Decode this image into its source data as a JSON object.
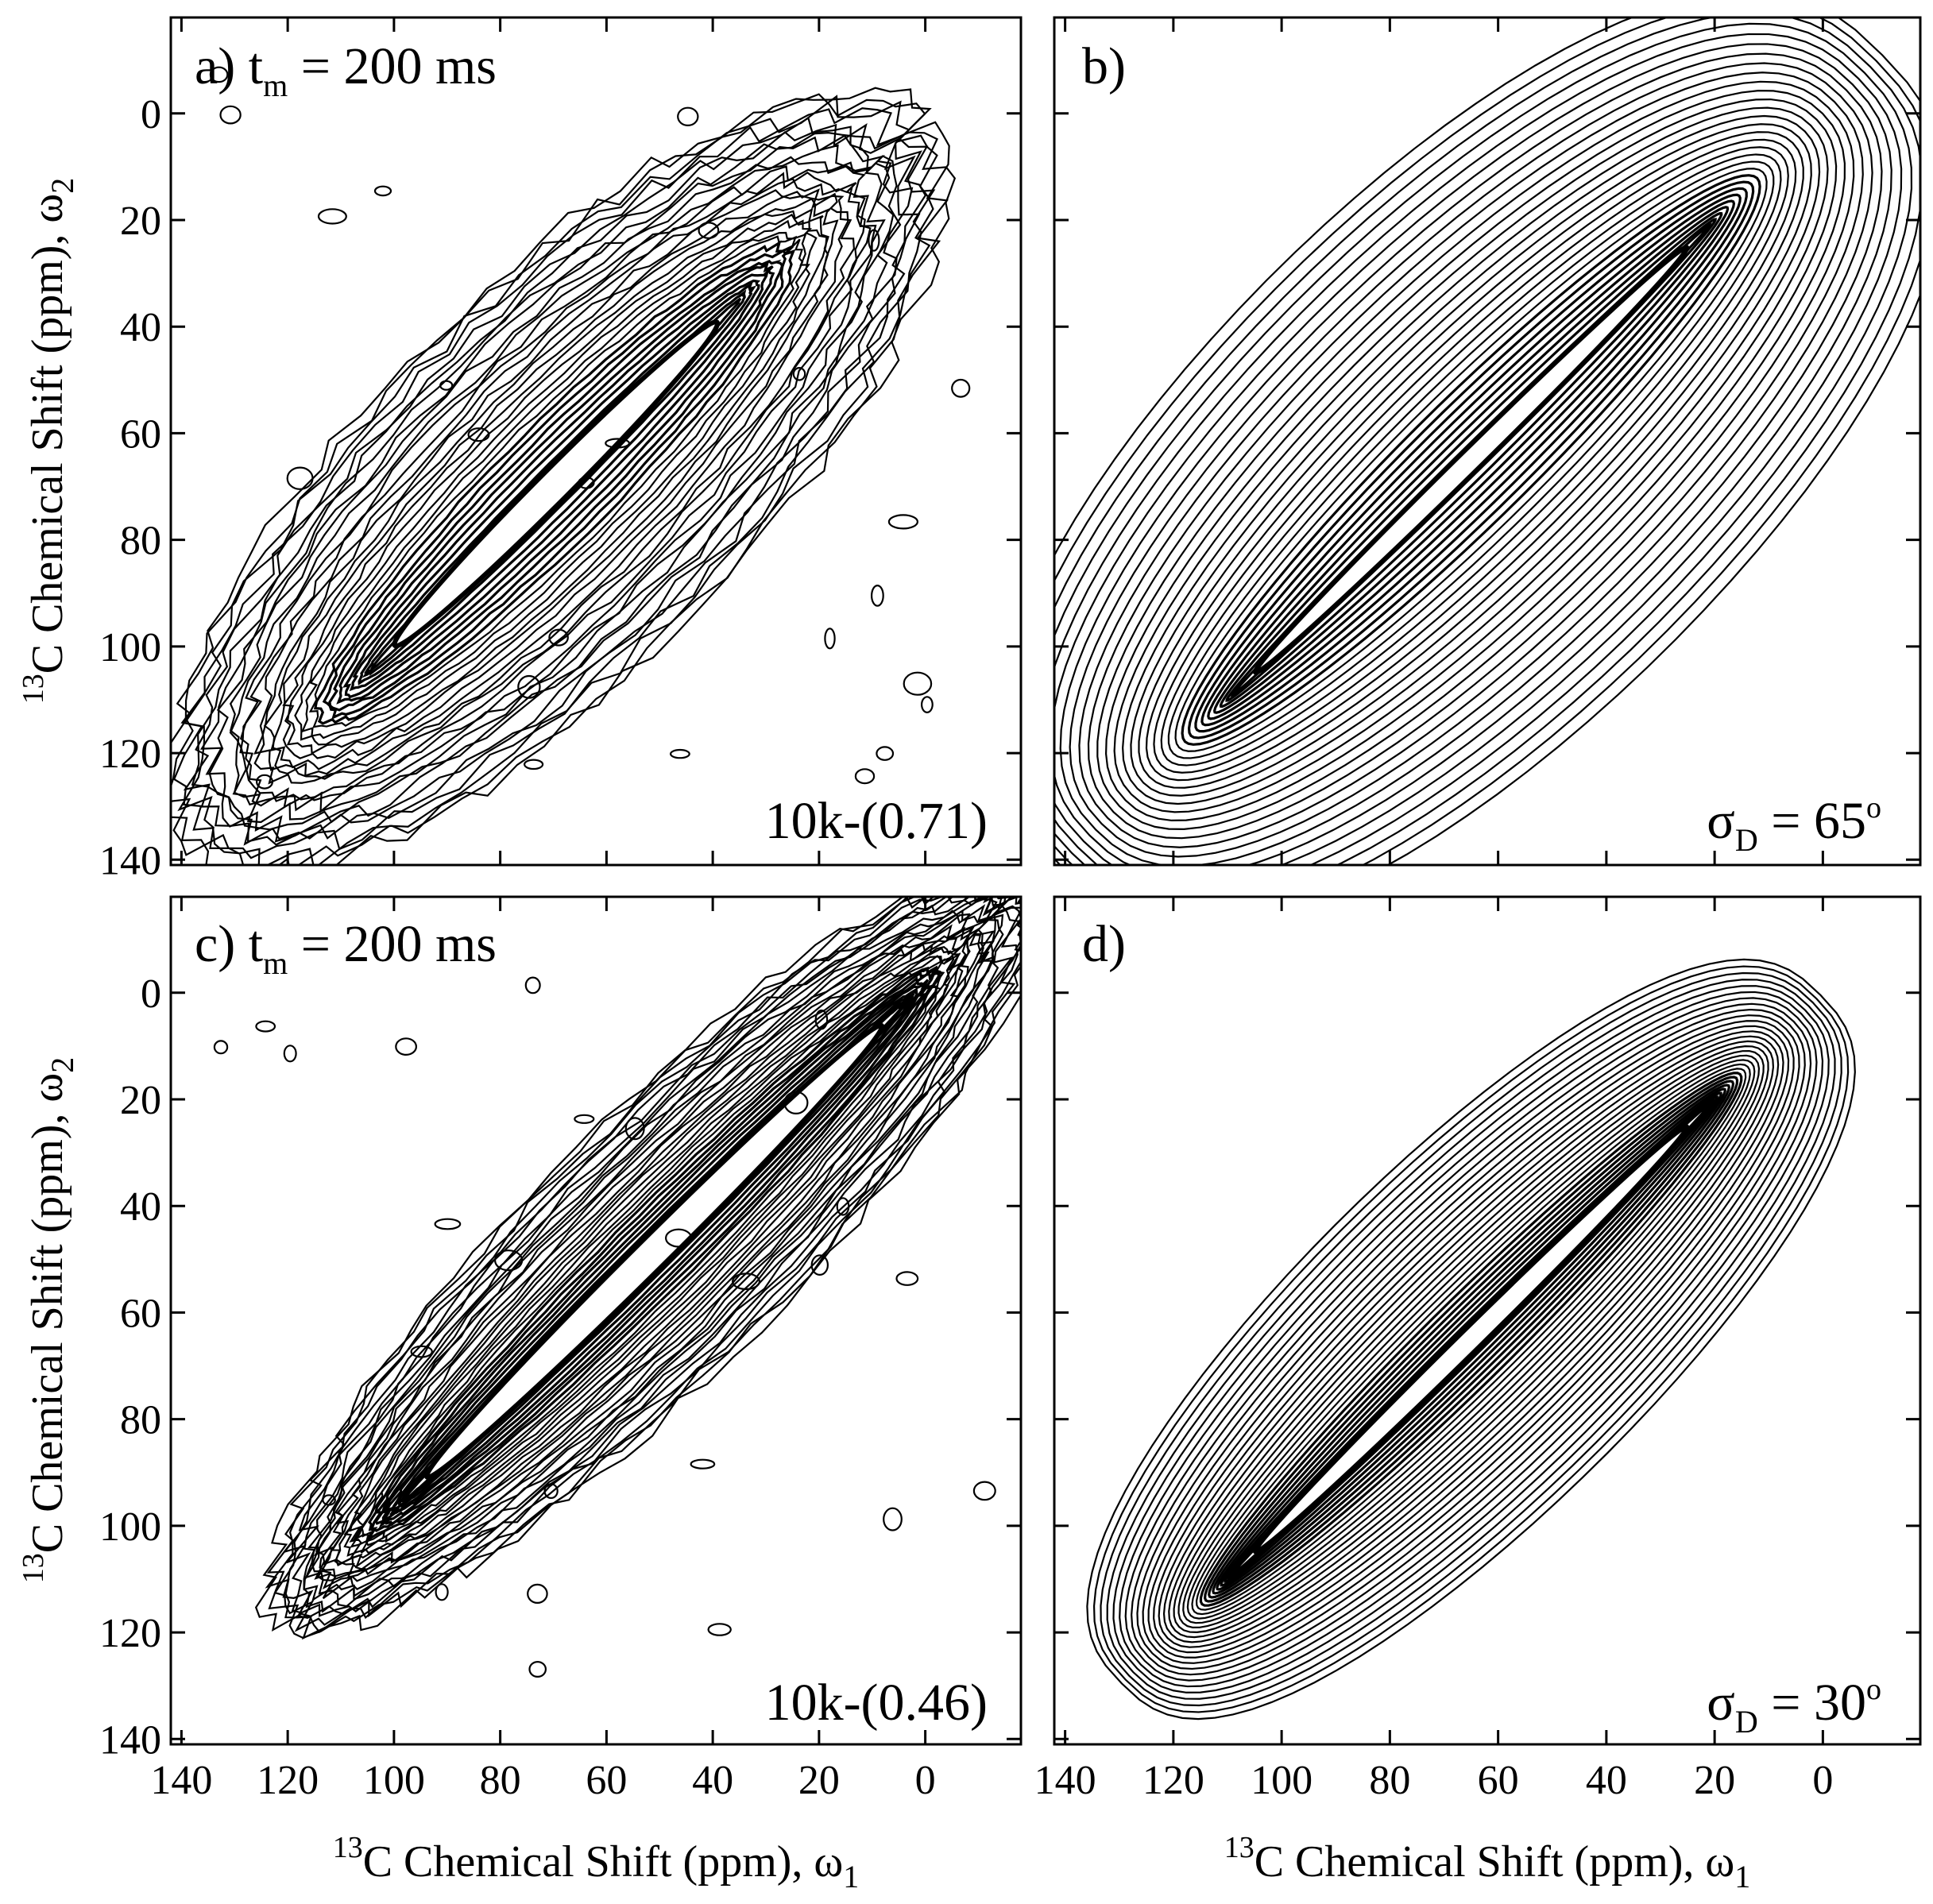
{
  "chart_data": {
    "type": "contour",
    "layout": "2x2 grid",
    "axes": {
      "x_title": {
        "sup": "13",
        "text": "C Chemical Shift (ppm), ω",
        "sub": "1"
      },
      "y_title": {
        "sup": "13",
        "text": "C Chemical Shift (ppm), ω",
        "sub": "2"
      },
      "x_ticks": [
        140,
        120,
        100,
        80,
        60,
        40,
        20,
        0
      ],
      "y_ticks": [
        0,
        20,
        40,
        60,
        80,
        100,
        120,
        140
      ],
      "x_range": [
        142,
        -18
      ],
      "y_range": [
        -18,
        141
      ]
    },
    "panels": [
      {
        "id": "a",
        "label_prefix": "a) t",
        "label_sub": "m",
        "label_suffix": " = 200 ms",
        "corner_text": "10k-(0.71)",
        "kind": "experimental",
        "diagonal_peak": {
          "from": [
            103,
            103
          ],
          "to": [
            36,
            36
          ]
        },
        "spread_ppm": 30
      },
      {
        "id": "b",
        "label": "b)",
        "corner_sigma": "σ",
        "corner_sub": "D",
        "corner_rest": " = 65",
        "corner_sup": "o",
        "kind": "simulated",
        "diagonal_peak": {
          "from": [
            108,
            108
          ],
          "to": [
            22,
            22
          ]
        },
        "spread_ppm": 28
      },
      {
        "id": "c",
        "label_prefix": "c) t",
        "label_sub": "m",
        "label_suffix": " = 200 ms",
        "corner_text": "10k-(0.46)",
        "kind": "experimental",
        "diagonal_peak": {
          "from": [
            97,
            94
          ],
          "to": [
            5,
            3
          ]
        },
        "spread_ppm": 20
      },
      {
        "id": "d",
        "label": "d)",
        "corner_sigma": "σ",
        "corner_sub": "D",
        "corner_rest": " = 30",
        "corner_sup": "o",
        "kind": "simulated",
        "diagonal_peak": {
          "from": [
            108,
            108
          ],
          "to": [
            22,
            22
          ]
        },
        "spread_ppm": 18
      }
    ]
  }
}
